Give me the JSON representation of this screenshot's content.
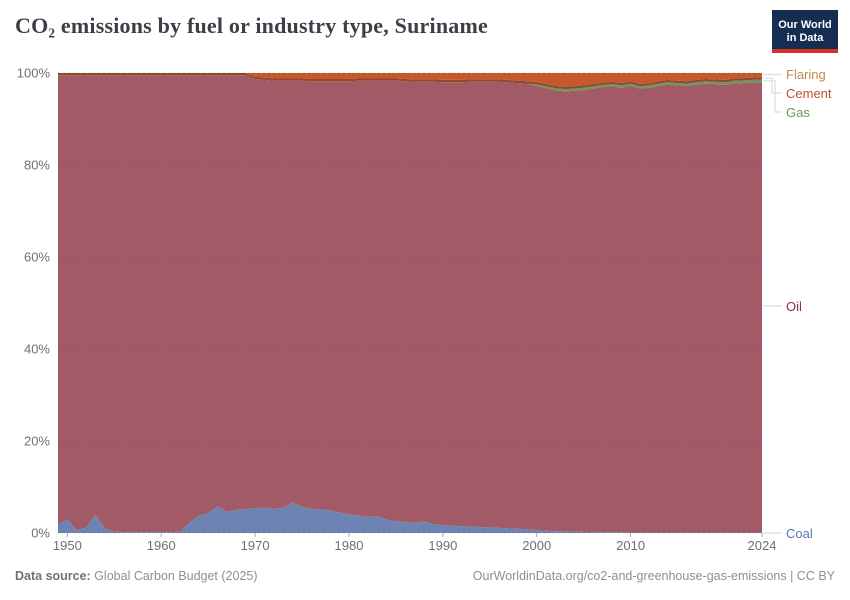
{
  "header": {
    "title": "CO₂ emissions by fuel or industry type, Suriname"
  },
  "logo": {
    "line1": "Our World",
    "line2": "in Data",
    "bg_color": "#142d50",
    "bar_color": "#d73223"
  },
  "chart_data": {
    "type": "area",
    "stacked": true,
    "normalized_percent": true,
    "title": "CO₂ emissions by fuel or industry type, Suriname",
    "xlabel": "",
    "ylabel": "",
    "ylim": [
      0,
      100
    ],
    "grid": "dashed-horizontal",
    "legend_position": "right-edge-labels",
    "x": [
      1949,
      1950,
      1951,
      1952,
      1953,
      1954,
      1955,
      1956,
      1957,
      1958,
      1959,
      1960,
      1961,
      1962,
      1963,
      1964,
      1965,
      1966,
      1967,
      1968,
      1969,
      1970,
      1971,
      1972,
      1973,
      1974,
      1975,
      1976,
      1977,
      1978,
      1979,
      1980,
      1981,
      1982,
      1983,
      1984,
      1985,
      1986,
      1987,
      1988,
      1989,
      1990,
      1991,
      1992,
      1993,
      1994,
      1995,
      1996,
      1997,
      1998,
      1999,
      2000,
      2001,
      2002,
      2003,
      2004,
      2005,
      2006,
      2007,
      2008,
      2009,
      2010,
      2011,
      2012,
      2013,
      2014,
      2015,
      2016,
      2017,
      2018,
      2019,
      2020,
      2021,
      2022,
      2023,
      2024
    ],
    "series": [
      {
        "name": "Coal",
        "color": "#6d84b3",
        "label_color": "#5878b3",
        "values": [
          1.8,
          3.0,
          0.6,
          1.2,
          4.0,
          1.0,
          0.3,
          0.2,
          0.2,
          0.2,
          0.2,
          0.2,
          0.2,
          0.3,
          2.2,
          3.8,
          4.3,
          5.8,
          4.6,
          5.0,
          5.2,
          5.4,
          5.5,
          5.3,
          5.5,
          6.6,
          5.6,
          5.3,
          5.1,
          4.9,
          4.4,
          4.1,
          3.8,
          3.5,
          3.7,
          2.9,
          2.6,
          2.4,
          2.2,
          2.5,
          1.9,
          1.7,
          1.6,
          1.5,
          1.4,
          1.3,
          1.2,
          1.1,
          1.0,
          0.9,
          0.8,
          0.6,
          0.5,
          0.4,
          0.35,
          0.3,
          0.25,
          0.2,
          0.2,
          0.15,
          0.15,
          0.1,
          0.1,
          0.1,
          0.1,
          0.1,
          0.1,
          0.1,
          0.1,
          0.1,
          0.1,
          0.1,
          0.1,
          0.1,
          0.1,
          0.1
        ]
      },
      {
        "name": "Oil",
        "color": "#a25b66",
        "label_color": "#8f3044",
        "values": null,
        "remainder_to_100": true
      },
      {
        "name": "Gas",
        "color": "#6f945f",
        "label_color": "#66975f",
        "values": [
          0,
          0,
          0,
          0,
          0,
          0,
          0,
          0,
          0,
          0,
          0,
          0,
          0,
          0,
          0,
          0,
          0,
          0,
          0,
          0,
          0,
          0,
          0,
          0,
          0,
          0,
          0,
          0,
          0,
          0,
          0,
          0,
          0,
          0,
          0,
          0,
          0,
          0,
          0,
          0,
          0,
          0,
          0,
          0,
          0,
          0,
          0,
          0,
          0,
          0,
          0,
          0.3,
          0.4,
          0.5,
          0.5,
          0.5,
          0.5,
          0.5,
          0.5,
          0.5,
          0.5,
          0.5,
          0.5,
          0.5,
          0.5,
          0.5,
          0.5,
          0.5,
          0.5,
          0.5,
          0.5,
          0.6,
          0.6,
          0.6,
          0.6,
          0.6
        ]
      },
      {
        "name": "Cement",
        "color": "#8f4a2c",
        "label_color": "#b8512f",
        "values": 0.5
      },
      {
        "name": "Flaring",
        "color": "#c6582c",
        "label_color": "#c4884e",
        "values": [
          0,
          0,
          0,
          0,
          0,
          0,
          0,
          0,
          0,
          0,
          0,
          0,
          0,
          0,
          0,
          0,
          0,
          0,
          0,
          0,
          0,
          0.8,
          1.0,
          1.2,
          1.2,
          1.2,
          1.2,
          1.3,
          1.3,
          1.3,
          1.3,
          1.3,
          1.2,
          1.2,
          1.2,
          1.2,
          1.2,
          1.3,
          1.4,
          1.4,
          1.4,
          1.5,
          1.5,
          1.5,
          1.4,
          1.4,
          1.4,
          1.4,
          1.5,
          1.7,
          1.8,
          2.0,
          2.4,
          2.8,
          3.0,
          2.9,
          2.7,
          2.4,
          2.1,
          1.9,
          2.2,
          1.8,
          2.4,
          2.2,
          1.8,
          1.5,
          1.7,
          1.8,
          1.5,
          1.3,
          1.4,
          1.5,
          1.2,
          1.1,
          1.0,
          0.9
        ]
      }
    ],
    "yticks": [
      {
        "value": 0,
        "label": "0%"
      },
      {
        "value": 20,
        "label": "20%"
      },
      {
        "value": 40,
        "label": "40%"
      },
      {
        "value": 60,
        "label": "60%"
      },
      {
        "value": 80,
        "label": "80%"
      },
      {
        "value": 100,
        "label": "100%"
      }
    ],
    "xticks": [
      {
        "value": 1950,
        "label": "1950"
      },
      {
        "value": 1960,
        "label": "1960"
      },
      {
        "value": 1970,
        "label": "1970"
      },
      {
        "value": 1980,
        "label": "1980"
      },
      {
        "value": 1990,
        "label": "1990"
      },
      {
        "value": 2000,
        "label": "2000"
      },
      {
        "value": 2010,
        "label": "2010"
      },
      {
        "value": 2024,
        "label": "2024"
      }
    ]
  },
  "legend": {
    "items": [
      {
        "key": "Flaring",
        "label": "Flaring"
      },
      {
        "key": "Cement",
        "label": "Cement"
      },
      {
        "key": "Gas",
        "label": "Gas"
      },
      {
        "key": "Oil",
        "label": "Oil"
      },
      {
        "key": "Coal",
        "label": "Coal"
      }
    ]
  },
  "footer": {
    "source_label": "Data source:",
    "source_value": " Global Carbon Budget (2025)",
    "link": "OurWorldinData.org/co2-and-greenhouse-gas-emissions | CC BY"
  },
  "colors": {
    "axis_text": "#6e7079",
    "gridline": "#2c2f36",
    "connector": "#d9dce2",
    "title_text": "#3b3f46"
  }
}
